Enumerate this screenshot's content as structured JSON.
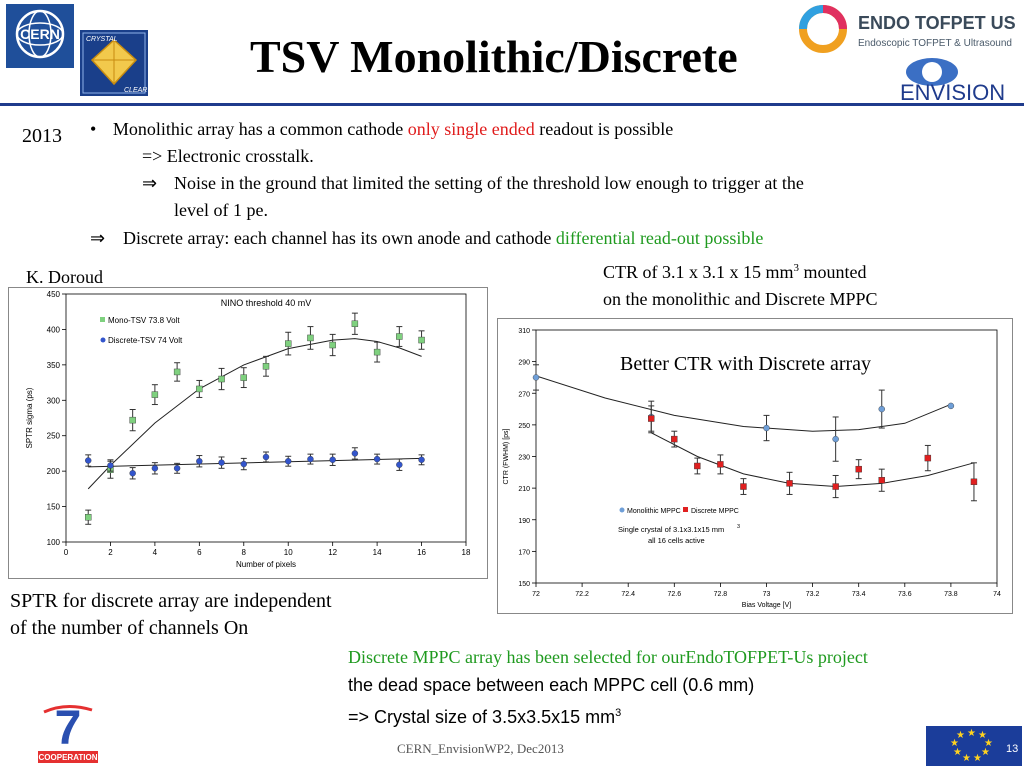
{
  "slide": {
    "title": "TSV Monolithic/Discrete",
    "year": "2013",
    "bullets": {
      "b1_pre": "Monolithic array has a common cathode ",
      "b1_red": "only single ended",
      "b1_post": " readout is possible",
      "b1_sub1": "=> Electronic crosstalk.",
      "b1_sub2_arrow": "⇒",
      "b1_sub2_line1": "Noise in the ground that limited the setting of the threshold low enough to trigger at the",
      "b1_sub2_line2": "level of 1 pe.",
      "b2_arrow": "⇒",
      "b2_pre": "Discrete array: each channel has its own anode and cathode ",
      "b2_green": "differential read-out possible"
    },
    "author": "K. Doroud",
    "ctr_note_line1": "CTR of 3.1 x 3.1 x 15 mm",
    "ctr_note_sup": "3",
    "ctr_note_line1_post": " mounted",
    "ctr_note_line2": "on the monolithic and Discrete MPPC",
    "better_ctr": "Better CTR with Discrete array",
    "sptr_conclusion_line1": "SPTR for discrete array are independent",
    "sptr_conclusion_line2": "of the number of channels On",
    "project_line1": "Discrete MPPC array has been selected for ourEndoTOFPET-Us project",
    "project_line2": "the dead space between each MPPC cell (0.6 mm)",
    "project_line3_pre": "=> Crystal size of 3.5x3.5x15 mm",
    "project_line3_sup": "3",
    "footer": "CERN_EnvisionWP2, Dec2013",
    "page_number": "13"
  },
  "logos": {
    "cern": "CERN",
    "crystal_clear_top": "CRYSTAL",
    "crystal_clear_bottom": "CLEAR",
    "endo_title": "ENDO TOFPET US",
    "endo_subtitle": "Endoscopic TOFPET & Ultrasound",
    "envision": "ENVISION",
    "fp7": "COOPERATION",
    "fp7_number": "7"
  },
  "colors": {
    "title_rule": "#1f3b8c",
    "highlight_red": "#e01b1b",
    "highlight_green": "#1f9a1f",
    "mono_series": "#7fd17f",
    "discrete_series": "#3355cc",
    "monolithic_mppc": "#6f9fd8",
    "discrete_mppc": "#e02020"
  },
  "chart_data": [
    {
      "type": "scatter",
      "title": "NINO threshold 40 mV",
      "xlabel": "Number of pixels",
      "ylabel": "SPTR sigma (ps)",
      "xlim": [
        0,
        18
      ],
      "ylim": [
        100,
        450
      ],
      "xticks": [
        0,
        2,
        4,
        6,
        8,
        10,
        12,
        14,
        16,
        18
      ],
      "yticks": [
        100,
        150,
        200,
        250,
        300,
        350,
        400,
        450
      ],
      "legend_position": "top-left",
      "series": [
        {
          "name": "Mono-TSV   73.8 Volt",
          "marker": "square",
          "color": "#7fd17f",
          "x": [
            1,
            2,
            3,
            4,
            5,
            6,
            7,
            8,
            9,
            10,
            11,
            12,
            13,
            14,
            15,
            16
          ],
          "y": [
            135,
            202,
            272,
            308,
            340,
            316,
            330,
            332,
            348,
            380,
            388,
            378,
            408,
            368,
            390,
            385
          ],
          "err": [
            10,
            12,
            15,
            14,
            13,
            12,
            15,
            14,
            14,
            16,
            16,
            15,
            15,
            14,
            14,
            13
          ],
          "fit": [
            [
              1,
              175
            ],
            [
              2,
              208
            ],
            [
              4,
              268
            ],
            [
              6,
              316
            ],
            [
              8,
              350
            ],
            [
              10,
              373
            ],
            [
              12,
              385
            ],
            [
              13,
              387
            ],
            [
              14,
              383
            ],
            [
              15,
              374
            ],
            [
              16,
              362
            ]
          ]
        },
        {
          "name": "Discrete-TSV  74 Volt",
          "marker": "circle",
          "color": "#3355cc",
          "x": [
            1,
            2,
            3,
            4,
            5,
            6,
            7,
            8,
            9,
            10,
            11,
            12,
            13,
            14,
            15,
            16
          ],
          "y": [
            215,
            208,
            197,
            204,
            204,
            214,
            212,
            210,
            220,
            214,
            217,
            216,
            225,
            217,
            209,
            216
          ],
          "err": [
            8,
            8,
            8,
            8,
            7,
            8,
            8,
            8,
            7,
            7,
            7,
            8,
            8,
            7,
            8,
            7
          ],
          "fit": [
            [
              1,
              206
            ],
            [
              16,
              218
            ]
          ]
        }
      ]
    },
    {
      "type": "scatter",
      "xlabel": "Bias Voltage [V]",
      "ylabel": "CTR (FWHM) [ps]",
      "xlim": [
        72,
        74
      ],
      "ylim": [
        150,
        310
      ],
      "xticks": [
        "72",
        "72.2",
        "72.4",
        "72.6",
        "72.8",
        "73",
        "73.2",
        "73.4",
        "73.6",
        "73.8",
        "74"
      ],
      "yticks": [
        150,
        170,
        190,
        210,
        230,
        250,
        270,
        290,
        310
      ],
      "legend_position": "bottom-left",
      "annotation_line1": "Single crystal of 3.1x3.1x15 mm",
      "annotation_sup": "3",
      "annotation_line2": "all 16 cells active",
      "series": [
        {
          "name": "Monolithic MPPC",
          "marker": "circle",
          "color": "#6f9fd8",
          "x": [
            72.0,
            72.5,
            73.0,
            73.3,
            73.5,
            73.8
          ],
          "y": [
            280,
            255,
            248,
            241,
            260,
            262
          ],
          "err": [
            8,
            10,
            8,
            14,
            12,
            0
          ],
          "fit": [
            [
              72.0,
              281
            ],
            [
              72.3,
              267
            ],
            [
              72.6,
              256
            ],
            [
              72.9,
              249
            ],
            [
              73.2,
              246
            ],
            [
              73.4,
              247
            ],
            [
              73.6,
              251
            ],
            [
              73.8,
              263
            ]
          ]
        },
        {
          "name": "Discrete MPPC",
          "marker": "square",
          "color": "#e02020",
          "x": [
            72.5,
            72.6,
            72.7,
            72.8,
            72.9,
            73.1,
            73.3,
            73.4,
            73.5,
            73.7,
            73.9
          ],
          "y": [
            254,
            241,
            224,
            225,
            211,
            213,
            211,
            222,
            215,
            229,
            214
          ],
          "err": [
            8,
            5,
            5,
            6,
            5,
            7,
            7,
            6,
            7,
            8,
            12
          ],
          "fit": [
            [
              72.5,
              245
            ],
            [
              72.7,
              230
            ],
            [
              72.9,
              219
            ],
            [
              73.1,
              213
            ],
            [
              73.3,
              211
            ],
            [
              73.5,
              213
            ],
            [
              73.7,
              218
            ],
            [
              73.9,
              226
            ]
          ]
        }
      ]
    }
  ]
}
